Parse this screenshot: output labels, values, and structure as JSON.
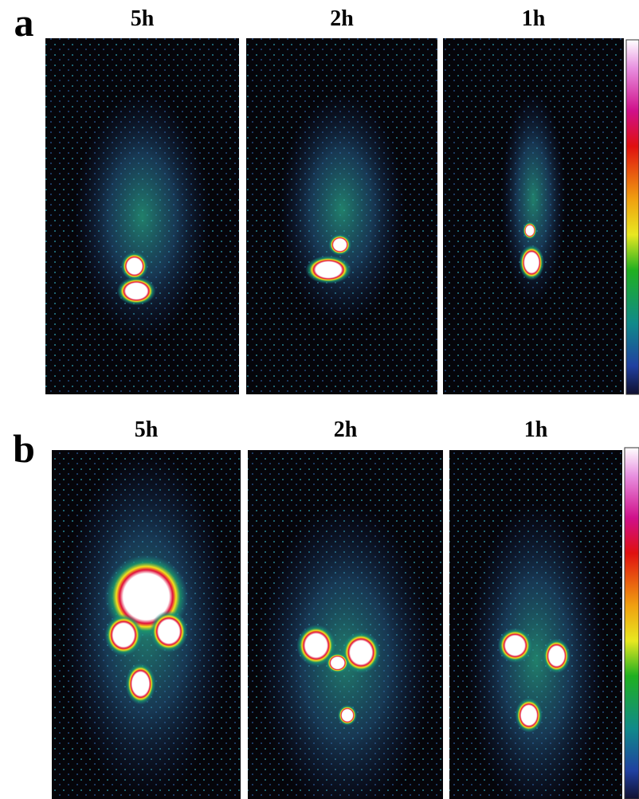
{
  "panels": [
    {
      "label": "a",
      "images": [
        {
          "title": "5h"
        },
        {
          "title": "2h"
        },
        {
          "title": "1h"
        }
      ]
    },
    {
      "label": "b",
      "images": [
        {
          "title": "5h"
        },
        {
          "title": "2h"
        },
        {
          "title": "1h"
        }
      ]
    }
  ]
}
